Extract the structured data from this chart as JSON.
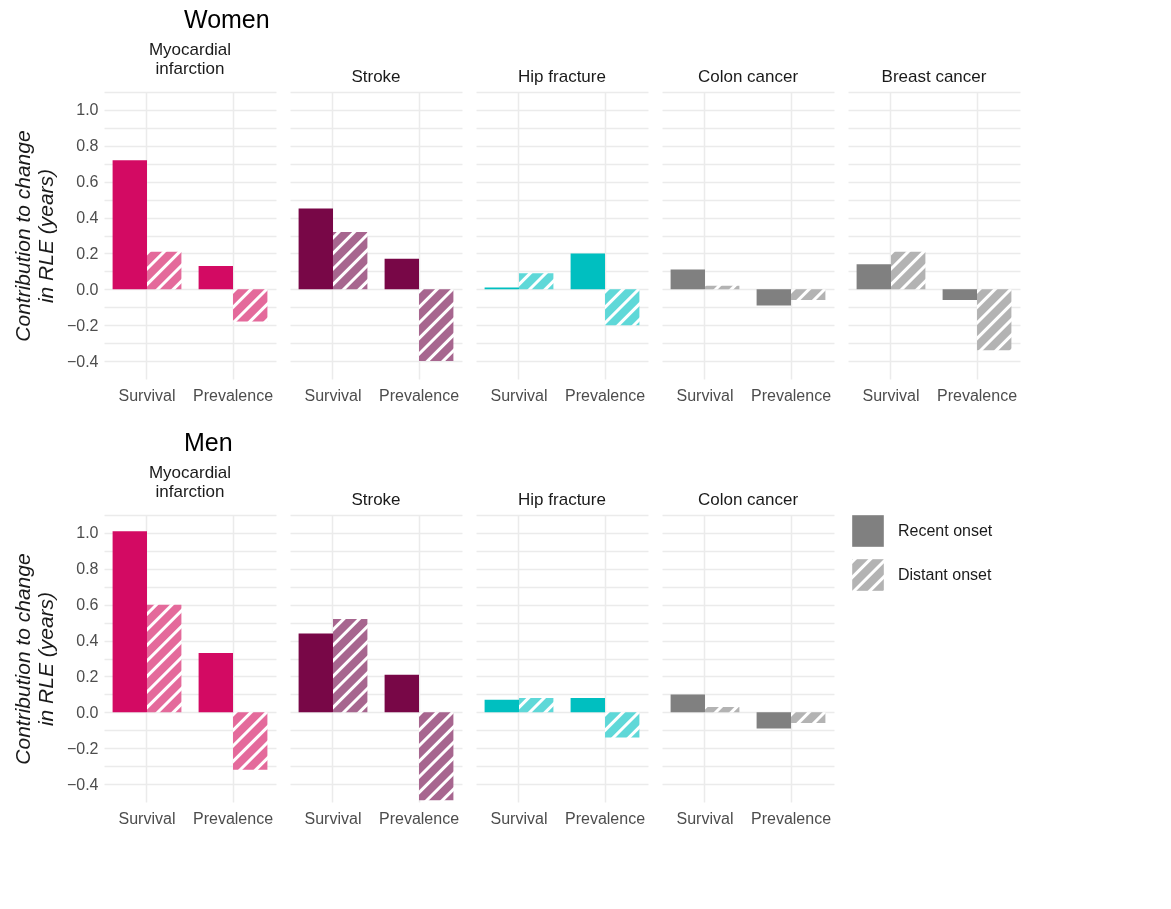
{
  "chart_data": [
    {
      "type": "bar",
      "title": "Myocardial infarction",
      "annotations": [
        "Women"
      ],
      "ylabel": "Contribution to change in RLE (years)",
      "categories": [
        "Survival",
        "Prevalence"
      ],
      "series": [
        {
          "color": "#d30a63",
          "values": [
            0.72,
            0.13
          ]
        },
        {
          "color": "#e46a9b",
          "values": [
            0.21,
            -0.18
          ]
        }
      ],
      "ylim": [
        -0.5,
        1.1
      ],
      "yticks": [
        {
          "value": -0.4,
          "label": "−0.4"
        },
        {
          "value": -0.3,
          "label": null
        },
        {
          "value": -0.2,
          "label": "−0.2"
        },
        {
          "value": -0.1,
          "label": null
        },
        {
          "value": 0,
          "label": "0.0"
        },
        {
          "value": 0.1,
          "label": null
        },
        0.2,
        {
          "value": 0.3,
          "label": null
        },
        0.4,
        {
          "value": 0.5,
          "label": null
        },
        0.6,
        {
          "value": 0.7,
          "label": null
        },
        0.8,
        {
          "value": 0.9,
          "label": null
        },
        {
          "value": 1,
          "label": "1.0"
        },
        {
          "value": 1.1,
          "label": null
        }
      ],
      "grid": true
    },
    {
      "type": "bar",
      "title": "Stroke",
      "categories": [
        "Survival",
        "Prevalence"
      ],
      "series": [
        {
          "color": "#780747",
          "values": [
            0.45,
            0.17
          ]
        },
        {
          "color": "#a7668f",
          "values": [
            0.32,
            -0.4
          ]
        }
      ],
      "ylim": [
        -0.5,
        1.1
      ],
      "yticks": [
        -0.4,
        -0.3,
        -0.2,
        -0.1,
        0,
        0.1,
        0.2,
        0.3,
        0.4,
        0.5,
        0.6,
        0.7,
        0.8,
        0.9,
        1,
        1.1
      ],
      "grid": true,
      "tick_labels": "x"
    },
    {
      "type": "bar",
      "title": "Hip fracture",
      "categories": [
        "Survival",
        "Prevalence"
      ],
      "series": [
        {
          "color": "#00bfc0",
          "values": [
            0.01,
            0.2
          ]
        },
        {
          "color": "#5fd8d8",
          "values": [
            0.09,
            -0.2
          ]
        }
      ],
      "ylim": [
        -0.5,
        1.1
      ],
      "yticks": [
        -0.4,
        -0.3,
        -0.2,
        -0.1,
        0,
        0.1,
        0.2,
        0.3,
        0.4,
        0.5,
        0.6,
        0.7,
        0.8,
        0.9,
        1,
        1.1
      ],
      "grid": true,
      "tick_labels": "x"
    },
    {
      "type": "bar",
      "title": "Colon cancer",
      "categories": [
        "Survival",
        "Prevalence"
      ],
      "series": [
        {
          "color": "#808080",
          "values": [
            0.11,
            -0.09
          ]
        },
        {
          "color": "#b3b3b3",
          "values": [
            0.02,
            -0.06
          ]
        }
      ],
      "ylim": [
        -0.5,
        1.1
      ],
      "yticks": [
        -0.4,
        -0.3,
        -0.2,
        -0.1,
        0,
        0.1,
        0.2,
        0.3,
        0.4,
        0.5,
        0.6,
        0.7,
        0.8,
        0.9,
        1,
        1.1
      ],
      "grid": true,
      "tick_labels": "x"
    },
    {
      "type": "bar",
      "title": "Breast cancer",
      "categories": [
        "Survival",
        "Prevalence"
      ],
      "series": [
        {
          "color": "#808080",
          "values": [
            0.14,
            -0.06
          ]
        },
        {
          "color": "#b3b3b3",
          "values": [
            0.21,
            -0.34
          ]
        }
      ],
      "ylim": [
        -0.5,
        1.1
      ],
      "yticks": [
        -0.4,
        -0.3,
        -0.2,
        -0.1,
        0,
        0.1,
        0.2,
        0.3,
        0.4,
        0.5,
        0.6,
        0.7,
        0.8,
        0.9,
        1,
        1.1
      ],
      "grid": true,
      "tick_labels": "x"
    },
    {
      "type": "bar",
      "title": "Myocardial infarction",
      "annotations": [
        "Men"
      ],
      "ylabel": "Contribution to change in RLE (years)",
      "categories": [
        "Survival",
        "Prevalence"
      ],
      "series": [
        {
          "color": "#d30a63",
          "values": [
            1.01,
            0.33
          ]
        },
        {
          "color": "#e46a9b",
          "values": [
            0.6,
            -0.32
          ]
        }
      ],
      "ylim": [
        -0.5,
        1.1
      ],
      "yticks": [
        {
          "value": -0.4,
          "label": "−0.4"
        },
        {
          "value": -0.3,
          "label": null
        },
        {
          "value": -0.2,
          "label": "−0.2"
        },
        {
          "value": -0.1,
          "label": null
        },
        {
          "value": 0,
          "label": "0.0"
        },
        {
          "value": 0.1,
          "label": null
        },
        0.2,
        {
          "value": 0.3,
          "label": null
        },
        0.4,
        {
          "value": 0.5,
          "label": null
        },
        0.6,
        {
          "value": 0.7,
          "label": null
        },
        0.8,
        {
          "value": 0.9,
          "label": null
        },
        {
          "value": 1,
          "label": "1.0"
        },
        {
          "value": 1.1,
          "label": null
        }
      ],
      "grid": true
    },
    {
      "type": "bar",
      "title": "Stroke",
      "categories": [
        "Survival",
        "Prevalence"
      ],
      "series": [
        {
          "color": "#780747",
          "values": [
            0.44,
            0.21
          ]
        },
        {
          "color": "#a7668f",
          "values": [
            0.52,
            -0.49
          ]
        }
      ],
      "ylim": [
        -0.5,
        1.1
      ],
      "yticks": [
        -0.4,
        -0.3,
        -0.2,
        -0.1,
        0,
        0.1,
        0.2,
        0.3,
        0.4,
        0.5,
        0.6,
        0.7,
        0.8,
        0.9,
        1,
        1.1
      ],
      "grid": true,
      "tick_labels": "x"
    },
    {
      "type": "bar",
      "title": "Hip fracture",
      "categories": [
        "Survival",
        "Prevalence"
      ],
      "series": [
        {
          "color": "#00bfc0",
          "values": [
            0.07,
            0.08
          ]
        },
        {
          "color": "#5fd8d8",
          "values": [
            0.08,
            -0.14
          ]
        }
      ],
      "ylim": [
        -0.5,
        1.1
      ],
      "yticks": [
        -0.4,
        -0.3,
        -0.2,
        -0.1,
        0,
        0.1,
        0.2,
        0.3,
        0.4,
        0.5,
        0.6,
        0.7,
        0.8,
        0.9,
        1,
        1.1
      ],
      "grid": true,
      "tick_labels": "x"
    },
    {
      "type": "bar",
      "title": "Colon cancer",
      "categories": [
        "Survival",
        "Prevalence"
      ],
      "series": [
        {
          "name": "Recent onset",
          "color": "#808080",
          "values": [
            0.1,
            -0.09
          ]
        },
        {
          "name": "Distant onset",
          "color": "#b3b3b3",
          "values": [
            0.03,
            -0.06
          ]
        }
      ],
      "ylim": [
        -0.5,
        1.1
      ],
      "yticks": [
        -0.4,
        -0.3,
        -0.2,
        -0.1,
        0,
        0.1,
        0.2,
        0.3,
        0.4,
        0.5,
        0.6,
        0.7,
        0.8,
        0.9,
        1,
        1.1
      ],
      "grid": true,
      "tick_labels": "x",
      "legend": "right"
    }
  ]
}
